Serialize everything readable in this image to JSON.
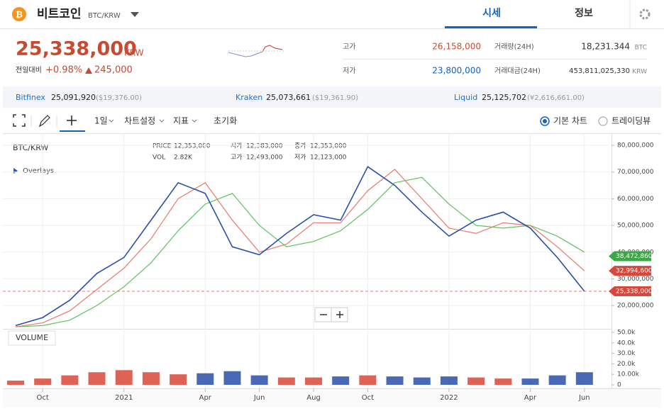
{
  "header": {
    "coin": "비트코인",
    "pair": "BTC/KRW",
    "tabs": [
      "시세",
      "정보"
    ]
  },
  "ticker": {
    "price": "25,338,000",
    "unit": "KRW",
    "change_label": "전일대비",
    "change_pct": "+0.98%",
    "change_amount": "245,000"
  },
  "stats": [
    {
      "label": "고가",
      "value": "26,158,000"
    },
    {
      "label": "저가",
      "value": "23,800,000"
    },
    {
      "label": "거래량(24H)",
      "value": "18,231.344",
      "unit": "BTC"
    },
    {
      "label": "거래대금(24H)",
      "value": "453,811,025,330",
      "unit": "KRW"
    }
  ],
  "exchanges": [
    {
      "name": "Bitfinex",
      "price": "25,091,920",
      "ref": "($19,376.00)"
    },
    {
      "name": "Kraken",
      "price": "25,073,661",
      "ref": "($19,361.90)"
    },
    {
      "name": "Liquid",
      "price": "25,125,702",
      "ref": "(¥2,616,661.00)"
    }
  ],
  "toolbar": {
    "interval": "1일",
    "settings": "차트설정",
    "indicators": "지표",
    "reset": "초기화",
    "modes": [
      "기본 차트",
      "트레이딩뷰"
    ]
  },
  "chart_data": {
    "type": "line",
    "title": "BTC/KRW",
    "overlays_label": "Overlays",
    "info": [
      {
        "label": "PRICE",
        "value": "12,353,000"
      },
      {
        "label": "시가",
        "value": "12,383,000"
      },
      {
        "label": "종가",
        "value": "12,353,000"
      },
      {
        "label": "VOL",
        "value": "2.82K"
      },
      {
        "label": "고가",
        "value": "12,493,000"
      },
      {
        "label": "저가",
        "value": "12,123,000"
      }
    ],
    "x": [
      "2020-09",
      "2020-10",
      "2020-11",
      "2020-12",
      "2021-01",
      "2021-02",
      "2021-03",
      "2021-04",
      "2021-05",
      "2021-06",
      "2021-07",
      "2021-08",
      "2021-09",
      "2021-10",
      "2021-11",
      "2021-12",
      "2022-01",
      "2022-02",
      "2022-03",
      "2022-04",
      "2022-05",
      "2022-06"
    ],
    "xlim": [
      "2020-09",
      "2022-07"
    ],
    "xticks": [
      {
        "value": "2020-10",
        "label": "Oct"
      },
      {
        "value": "2021-01",
        "label": "2021"
      },
      {
        "value": "2021-04",
        "label": "Apr"
      },
      {
        "value": "2021-06",
        "label": "Jun"
      },
      {
        "value": "2021-08",
        "label": "Aug"
      },
      {
        "value": "2021-10",
        "label": "Oct"
      },
      {
        "value": "2022-01",
        "label": "2022"
      },
      {
        "value": "2022-04",
        "label": "Apr"
      },
      {
        "value": "2022-06",
        "label": "Jun"
      }
    ],
    "ylim": [
      11800000,
      84000000
    ],
    "yticks": [
      {
        "value": 20000000,
        "label": "20,000,000"
      },
      {
        "value": 30000000,
        "label": "30,000,000"
      },
      {
        "value": 40000000,
        "label": "40,000,000"
      },
      {
        "value": 50000000,
        "label": "50,000,000"
      },
      {
        "value": 60000000,
        "label": "60,000,000"
      },
      {
        "value": 70000000,
        "label": "70,000,000"
      },
      {
        "value": 80000000,
        "label": "80,000,000"
      }
    ],
    "grid": true,
    "series": [
      {
        "color": "#2a4fa8",
        "values": [
          12500000,
          15500000,
          22000000,
          32000000,
          38000000,
          52000000,
          66000000,
          62000000,
          42000000,
          39000000,
          47000000,
          54000000,
          52000000,
          72000000,
          65000000,
          55000000,
          46000000,
          52000000,
          55000000,
          49000000,
          38000000,
          25338000
        ]
      },
      {
        "color": "#e8796a",
        "values": [
          12000000,
          13500000,
          18000000,
          26000000,
          34000000,
          45000000,
          60000000,
          66000000,
          52000000,
          40000000,
          43000000,
          51000000,
          51000000,
          63000000,
          71000000,
          60000000,
          49000000,
          47000000,
          51000000,
          50000000,
          42000000,
          33000000
        ]
      },
      {
        "color": "#5cc45c",
        "values": [
          12000000,
          12500000,
          14500000,
          20000000,
          27000000,
          36000000,
          48000000,
          58000000,
          62000000,
          50000000,
          42000000,
          44000000,
          48000000,
          56000000,
          66000000,
          68000000,
          58000000,
          50000000,
          49000000,
          50000000,
          46000000,
          40000000
        ]
      }
    ],
    "price_markers": [
      {
        "value": 38472860,
        "label": "38,472,860",
        "color": "#3aa845"
      },
      {
        "value": 32994600,
        "label": "32,994,600",
        "color": "#d9473a"
      },
      {
        "value": 25338000,
        "label": "25,338,000",
        "color": "#d9473a",
        "line": true
      }
    ],
    "volume": {
      "label": "VOLUME",
      "up_color": "#d9473a",
      "down_color": "#2a4fa8",
      "values": [
        4000,
        6000,
        9000,
        12000,
        14000,
        12000,
        10000,
        11000,
        13000,
        9000,
        7000,
        7000,
        8000,
        9000,
        8000,
        7000,
        8000,
        7000,
        6000,
        6000,
        9000,
        12000
      ],
      "ylim": [
        0,
        50000
      ],
      "yticks": [
        0,
        {
          "value": 10000,
          "label": "10.00k"
        },
        {
          "value": 20000,
          "label": "20.0k"
        },
        {
          "value": 30000,
          "label": "30.0k"
        },
        {
          "value": 40000,
          "label": "40.0k"
        },
        {
          "value": 50000,
          "label": "50.0k"
        }
      ]
    }
  }
}
